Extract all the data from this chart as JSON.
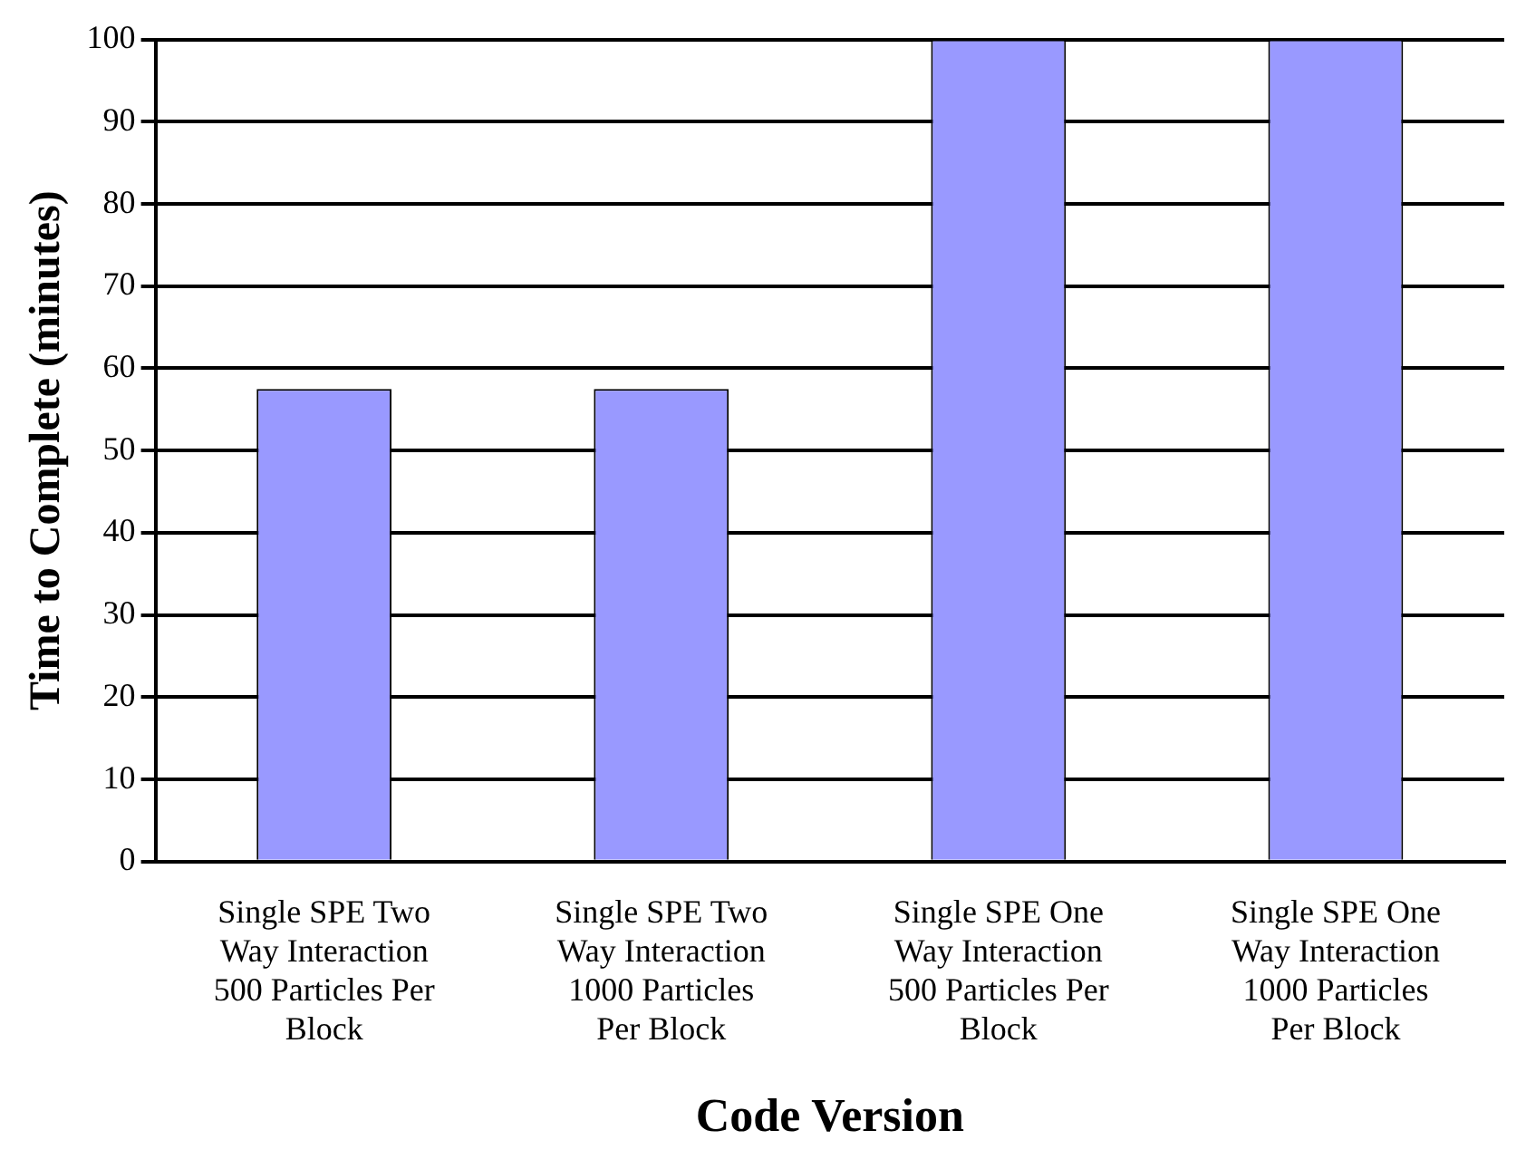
{
  "chart_data": {
    "type": "bar",
    "xlabel": "Code Version",
    "ylabel": "Time to Complete (minutes)",
    "categories": [
      "Single SPE Two Way Interaction 500 Particles Per Block",
      "Single SPE Two Way Interaction 1000 Particles Per Block",
      "Single SPE One Way Interaction 500 Particles Per Block",
      "Single SPE One Way Interaction 1000 Particles Per Block"
    ],
    "values": [
      57.5,
      57.5,
      100,
      100
    ],
    "color": "#9999ff",
    "ylim": [
      0,
      100
    ],
    "yticks": [
      0,
      10,
      20,
      30,
      40,
      50,
      60,
      70,
      80,
      90,
      100
    ],
    "grid": "y",
    "legend": false
  }
}
